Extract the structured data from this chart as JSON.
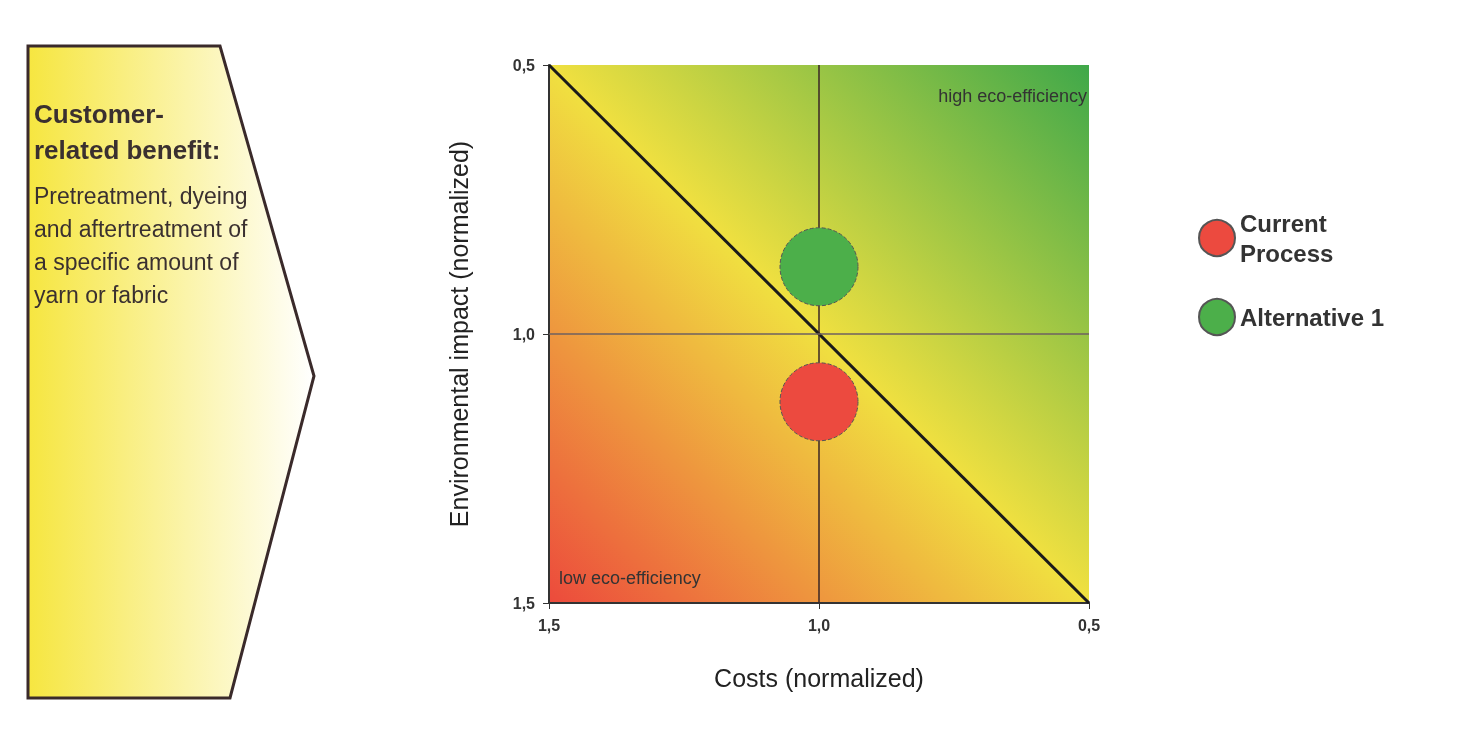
{
  "chart_data": {
    "type": "bubble",
    "xlabel": "Costs (normalized)",
    "ylabel": "Environmental impact (normalized)",
    "xlim": [
      1.5,
      0.5
    ],
    "xticks": [
      {
        "value": 1.5,
        "label": "1,5"
      },
      {
        "value": 1.0,
        "label": "1,0"
      },
      {
        "value": 0.5,
        "label": "0,5"
      }
    ],
    "ylim": [
      1.5,
      0.5
    ],
    "yticks": [
      {
        "value": 1.5,
        "label": "1,5"
      },
      {
        "value": 1.0,
        "label": "1,0"
      },
      {
        "value": 0.5,
        "label": "0,5"
      }
    ],
    "series": [
      {
        "name": "Current Process",
        "color": "#ec4a3f",
        "x": [
          1.0
        ],
        "values": [
          1.126
        ],
        "sizes": [
          1
        ]
      },
      {
        "name": "Alternative 1",
        "color": "#4caf4a",
        "x": [
          1.0
        ],
        "values": [
          0.875
        ],
        "sizes": [
          1
        ]
      },
      {
        "type": "line",
        "color": "#1a1a1a",
        "x": [
          1.5,
          0.5
        ],
        "values": [
          0.5,
          1.5
        ]
      }
    ],
    "ref_lines": [
      {
        "axis": "x",
        "value": 1.0,
        "color": "#3a2626"
      },
      {
        "axis": "y",
        "value": 1.0,
        "color": "#6e6060"
      }
    ],
    "legend": "right",
    "annotations": [
      "high eco-efficiency",
      "low eco-efficiency",
      "Customer-related benefit:",
      "Pretreatment, dyeing and aftertreatment of a specific amount of yarn or fabric"
    ]
  }
}
